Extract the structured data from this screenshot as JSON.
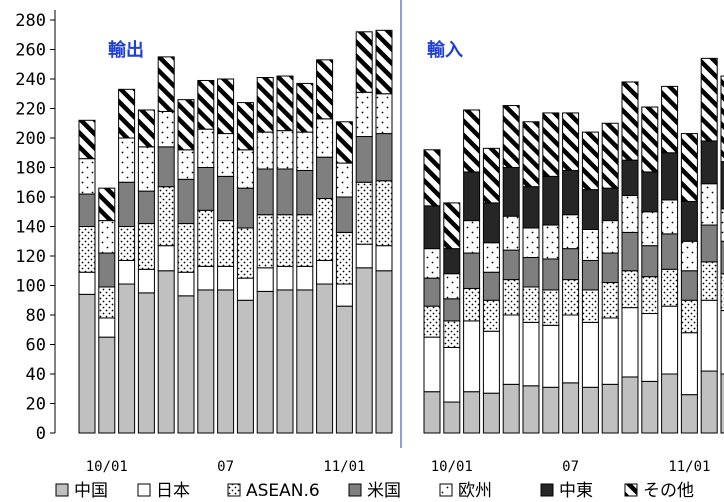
{
  "chart_data": {
    "type": "bar",
    "stacked": true,
    "title": "",
    "ylabel": "",
    "xlabel": "",
    "ylim": [
      0,
      280
    ],
    "yticks": [
      0,
      20,
      40,
      60,
      80,
      100,
      120,
      140,
      160,
      180,
      200,
      220,
      240,
      260,
      280
    ],
    "grid": false,
    "legend_position": "bottom",
    "legend": [
      "中国",
      "日本",
      "ASEAN.6",
      "米国",
      "欧州",
      "中東",
      "その他"
    ],
    "panels": [
      {
        "name": "輸出",
        "x_tick_labels": [
          "10/01",
          "07",
          "11/01"
        ],
        "series": [
          {
            "name": "中国",
            "values": [
              94,
              65,
              101,
              95,
              110,
              93,
              97,
              97,
              90,
              96,
              97,
              97,
              101,
              86,
              112,
              110
            ]
          },
          {
            "name": "日本",
            "values": [
              15,
              13,
              16,
              16,
              17,
              16,
              16,
              16,
              15,
              16,
              16,
              16,
              16,
              15,
              16,
              17
            ]
          },
          {
            "name": "ASEAN.6",
            "values": [
              31,
              21,
              23,
              31,
              40,
              33,
              38,
              31,
              34,
              36,
              35,
              35,
              42,
              35,
              42,
              44
            ]
          },
          {
            "name": "米国",
            "values": [
              22,
              23,
              30,
              22,
              27,
              30,
              29,
              30,
              27,
              31,
              31,
              30,
              28,
              24,
              31,
              32
            ]
          },
          {
            "name": "欧州",
            "values": [
              24,
              22,
              30,
              30,
              24,
              20,
              26,
              29,
              26,
              25,
              26,
              26,
              26,
              23,
              30,
              27
            ]
          },
          {
            "name": "その他",
            "values": [
              26,
              22,
              33,
              25,
              37,
              34,
              33,
              37,
              32,
              37,
              37,
              33,
              40,
              28,
              41,
              43
            ]
          }
        ]
      },
      {
        "name": "輸入",
        "x_tick_labels": [
          "10/01",
          "07",
          "11/01"
        ],
        "series": [
          {
            "name": "中国",
            "values": [
              28,
              21,
              28,
              27,
              33,
              32,
              31,
              34,
              31,
              33,
              38,
              35,
              40,
              26,
              42,
              40
            ]
          },
          {
            "name": "日本",
            "values": [
              37,
              37,
              48,
              42,
              47,
              43,
              42,
              46,
              44,
              45,
              47,
              46,
              46,
              42,
              48,
              43
            ]
          },
          {
            "name": "ASEAN.6",
            "values": [
              21,
              18,
              22,
              21,
              24,
              24,
              24,
              24,
              22,
              24,
              25,
              25,
              25,
              22,
              26,
              25
            ]
          },
          {
            "name": "米国",
            "values": [
              19,
              15,
              24,
              19,
              20,
              20,
              21,
              21,
              20,
              20,
              26,
              21,
              24,
              20,
              25,
              22
            ]
          },
          {
            "name": "欧州",
            "values": [
              20,
              17,
              22,
              20,
              23,
              20,
              23,
              23,
              21,
              22,
              25,
              23,
              23,
              20,
              28,
              22
            ]
          },
          {
            "name": "中東",
            "values": [
              29,
              17,
              33,
              27,
              33,
              28,
              33,
              30,
              27,
              22,
              24,
              27,
              32,
              27,
              29,
              32
            ]
          },
          {
            "name": "その他",
            "values": [
              38,
              31,
              42,
              37,
              42,
              44,
              43,
              39,
              39,
              44,
              53,
              44,
              45,
              46,
              56,
              58
            ]
          }
        ]
      }
    ]
  }
}
